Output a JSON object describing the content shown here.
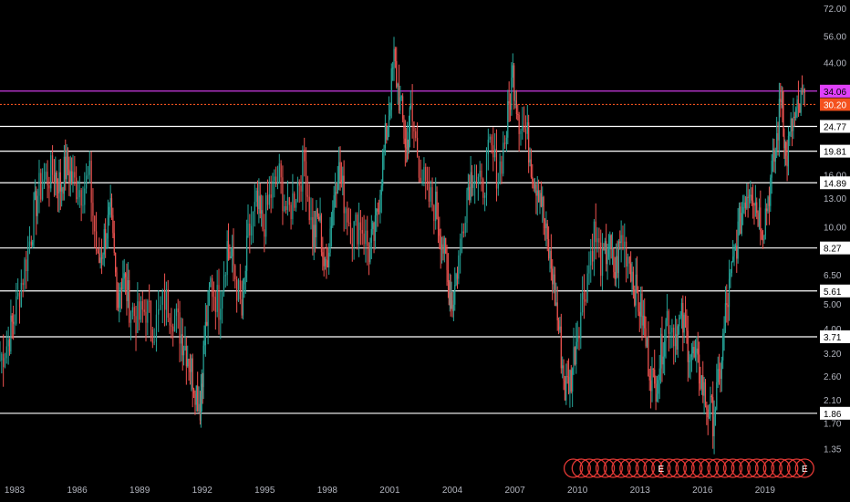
{
  "chart_data": {
    "type": "line",
    "title": "",
    "xlabel": "",
    "ylabel": "",
    "scale": "log",
    "ylim": [
      1.2,
      75
    ],
    "xlim": [
      1982.3,
      2021.5
    ],
    "grid": false,
    "x_ticks": [
      "1983",
      "1986",
      "1989",
      "1992",
      "1995",
      "1998",
      "2001",
      "2004",
      "2007",
      "2010",
      "2013",
      "2016",
      "2019"
    ],
    "y_ticks": [
      "72.00",
      "56.00",
      "44.00",
      "16.00",
      "13.00",
      "10.00",
      "6.50",
      "5.00",
      "4.00",
      "3.20",
      "2.60",
      "2.10",
      "1.70",
      "1.35"
    ],
    "horizontal_levels": [
      {
        "label": "34.06",
        "value": 34.06,
        "style": "solid",
        "color": "#e040fb",
        "badge_text_color": "#000000"
      },
      {
        "label": "30.20",
        "value": 30.2,
        "style": "dotted",
        "color": "#f4511e",
        "badge_text_color": "#ffffff"
      },
      {
        "label": "24.77",
        "value": 24.77,
        "style": "solid",
        "color": "#ffffff",
        "badge_text_color": "#000000"
      },
      {
        "label": "19.81",
        "value": 19.81,
        "style": "solid",
        "color": "#ffffff",
        "badge_text_color": "#000000"
      },
      {
        "label": "14.89",
        "value": 14.89,
        "style": "solid",
        "color": "#ffffff",
        "badge_text_color": "#000000"
      },
      {
        "label": "8.27",
        "value": 8.27,
        "style": "solid",
        "color": "#ffffff",
        "badge_text_color": "#000000"
      },
      {
        "label": "5.61",
        "value": 5.61,
        "style": "solid",
        "color": "#ffffff",
        "badge_text_color": "#000000"
      },
      {
        "label": "3.71",
        "value": 3.71,
        "style": "solid",
        "color": "#ffffff",
        "badge_text_color": "#000000"
      },
      {
        "label": "1.86",
        "value": 1.86,
        "style": "solid",
        "color": "#ffffff",
        "badge_text_color": "#000000"
      }
    ],
    "series": [
      {
        "color_up": "#26a69a",
        "color_down": "#ef5350",
        "points": [
          [
            1982.3,
            3.0
          ],
          [
            1982.7,
            3.6
          ],
          [
            1983.0,
            4.5
          ],
          [
            1983.4,
            6.5
          ],
          [
            1983.8,
            9.5
          ],
          [
            1984.1,
            13.5
          ],
          [
            1984.5,
            15.5
          ],
          [
            1984.9,
            16.5
          ],
          [
            1985.2,
            14.5
          ],
          [
            1985.5,
            17.5
          ],
          [
            1985.8,
            15.0
          ],
          [
            1986.2,
            14.0
          ],
          [
            1986.6,
            15.5
          ],
          [
            1987.0,
            7.0
          ],
          [
            1987.3,
            9.0
          ],
          [
            1987.6,
            11.0
          ],
          [
            1987.9,
            5.5
          ],
          [
            1988.2,
            6.5
          ],
          [
            1988.5,
            5.0
          ],
          [
            1988.9,
            4.3
          ],
          [
            1989.3,
            4.8
          ],
          [
            1989.7,
            4.0
          ],
          [
            1990.2,
            5.2
          ],
          [
            1990.6,
            4.6
          ],
          [
            1991.0,
            3.8
          ],
          [
            1991.3,
            3.2
          ],
          [
            1991.6,
            2.5
          ],
          [
            1991.9,
            2.0
          ],
          [
            1992.1,
            3.5
          ],
          [
            1992.4,
            6.0
          ],
          [
            1992.8,
            5.0
          ],
          [
            1993.2,
            8.5
          ],
          [
            1993.5,
            7.0
          ],
          [
            1993.9,
            4.5
          ],
          [
            1994.2,
            9.0
          ],
          [
            1994.6,
            12.0
          ],
          [
            1994.9,
            10.0
          ],
          [
            1995.3,
            13.5
          ],
          [
            1995.7,
            15.5
          ],
          [
            1996.1,
            11.0
          ],
          [
            1996.5,
            14.0
          ],
          [
            1996.9,
            18.0
          ],
          [
            1997.3,
            9.0
          ],
          [
            1997.6,
            11.0
          ],
          [
            1997.9,
            6.5
          ],
          [
            1998.2,
            11.0
          ],
          [
            1998.5,
            17.5
          ],
          [
            1998.8,
            13.0
          ],
          [
            1999.2,
            9.5
          ],
          [
            1999.6,
            10.5
          ],
          [
            2000.0,
            8.0
          ],
          [
            2000.3,
            9.5
          ],
          [
            2000.6,
            16.5
          ],
          [
            2000.9,
            26.0
          ],
          [
            2001.2,
            45.0
          ],
          [
            2001.5,
            30.0
          ],
          [
            2001.8,
            20.0
          ],
          [
            2002.0,
            28.0
          ],
          [
            2002.4,
            18.0
          ],
          [
            2002.8,
            13.0
          ],
          [
            2003.2,
            12.0
          ],
          [
            2003.5,
            9.0
          ],
          [
            2003.8,
            6.0
          ],
          [
            2004.0,
            5.0
          ],
          [
            2004.3,
            7.5
          ],
          [
            2004.7,
            14.0
          ],
          [
            2005.0,
            17.0
          ],
          [
            2005.4,
            13.5
          ],
          [
            2005.8,
            20.0
          ],
          [
            2006.2,
            16.0
          ],
          [
            2006.6,
            24.0
          ],
          [
            2006.9,
            40.0
          ],
          [
            2007.2,
            27.0
          ],
          [
            2007.6,
            22.0
          ],
          [
            2007.9,
            16.0
          ],
          [
            2008.2,
            14.0
          ],
          [
            2008.5,
            9.0
          ],
          [
            2008.8,
            6.5
          ],
          [
            2009.1,
            4.0
          ],
          [
            2009.4,
            2.3
          ],
          [
            2009.7,
            2.6
          ],
          [
            2010.0,
            4.0
          ],
          [
            2010.4,
            6.0
          ],
          [
            2010.8,
            9.5
          ],
          [
            2011.2,
            7.0
          ],
          [
            2011.5,
            8.5
          ],
          [
            2011.8,
            6.5
          ],
          [
            2012.1,
            9.0
          ],
          [
            2012.5,
            7.5
          ],
          [
            2012.8,
            5.5
          ],
          [
            2013.1,
            4.5
          ],
          [
            2013.4,
            3.0
          ],
          [
            2013.7,
            2.3
          ],
          [
            2014.0,
            3.2
          ],
          [
            2014.3,
            4.5
          ],
          [
            2014.7,
            3.8
          ],
          [
            2015.0,
            4.3
          ],
          [
            2015.3,
            3.5
          ],
          [
            2015.6,
            3.0
          ],
          [
            2015.9,
            2.6
          ],
          [
            2016.2,
            2.0
          ],
          [
            2016.5,
            1.8
          ],
          [
            2016.8,
            2.5
          ],
          [
            2017.1,
            4.5
          ],
          [
            2017.4,
            6.5
          ],
          [
            2017.7,
            9.5
          ],
          [
            2018.0,
            13.0
          ],
          [
            2018.3,
            15.0
          ],
          [
            2018.6,
            12.0
          ],
          [
            2018.9,
            10.0
          ],
          [
            2019.2,
            14.0
          ],
          [
            2019.5,
            20.0
          ],
          [
            2019.8,
            34.0
          ],
          [
            2020.0,
            18.0
          ],
          [
            2020.3,
            25.0
          ],
          [
            2020.6,
            28.0
          ],
          [
            2020.9,
            33.5
          ]
        ]
      }
    ],
    "earnings_markers": {
      "count": 30,
      "x_start": 2009.8,
      "x_end": 2020.9,
      "labeled": [
        {
          "index": 11,
          "text": "E"
        },
        {
          "index": 29,
          "text": "E"
        }
      ]
    },
    "colors": {
      "background": "#000000",
      "axis_text": "#b2b5be",
      "marker_stroke": "#e53935"
    }
  }
}
